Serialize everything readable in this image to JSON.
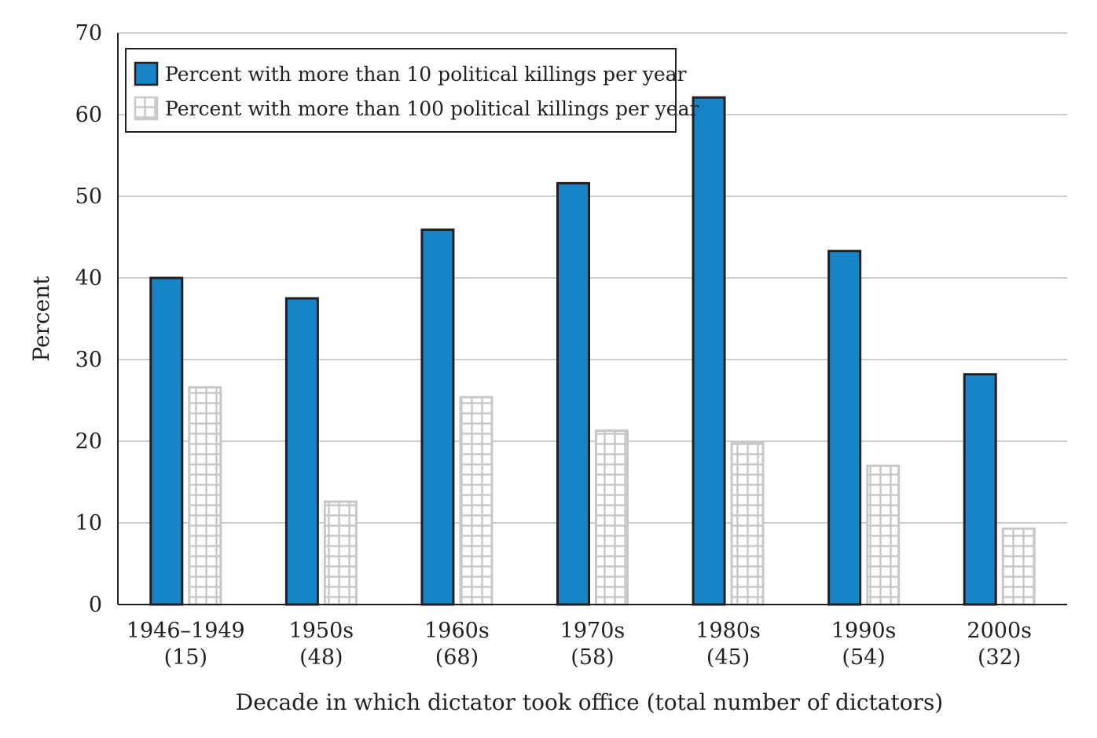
{
  "chart_data": {
    "type": "bar",
    "title": "",
    "xlabel": "Decade in which dictator took office (total number of dictators)",
    "ylabel": "Percent",
    "ylim": [
      0,
      70
    ],
    "yticks": [
      0,
      10,
      20,
      30,
      40,
      50,
      60,
      70
    ],
    "grid": true,
    "legend_position": "top-left",
    "categories": [
      "1946–1949",
      "1950s",
      "1960s",
      "1970s",
      "1980s",
      "1990s",
      "2000s"
    ],
    "category_counts": [
      "(15)",
      "(48)",
      "(68)",
      "(58)",
      "(45)",
      "(54)",
      "(32)"
    ],
    "series": [
      {
        "name": "Percent with more than 10 political killings per year",
        "values": [
          40.0,
          37.5,
          45.9,
          51.6,
          62.1,
          43.3,
          28.2
        ],
        "color": "#1884c8",
        "pattern": "solid"
      },
      {
        "name": "Percent with more than 100 political killings per year",
        "values": [
          26.6,
          12.6,
          25.4,
          21.3,
          19.9,
          17.0,
          9.3
        ],
        "color": "#c8c8c8",
        "pattern": "grid"
      }
    ]
  }
}
